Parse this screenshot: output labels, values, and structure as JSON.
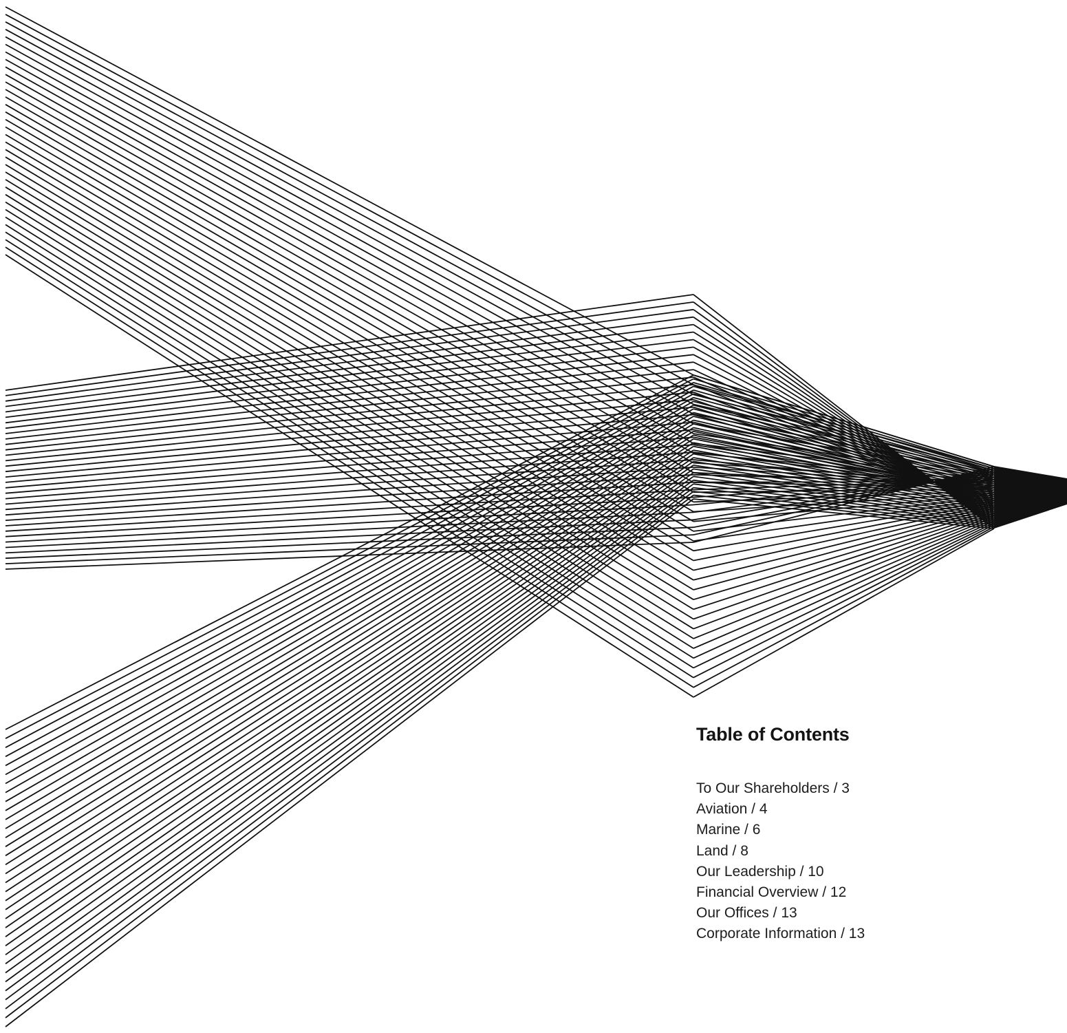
{
  "toc": {
    "title": "Table of Contents",
    "items": [
      "To Our Shareholders / 3",
      "Aviation / 4",
      "Marine / 6",
      "Land / 8",
      "Our Leadership / 10",
      "Financial Overview / 12",
      "Our Offices / 13",
      "Corporate Information / 13"
    ]
  },
  "artwork": {
    "stroke_color": "#111111",
    "background_color": "#ffffff"
  }
}
